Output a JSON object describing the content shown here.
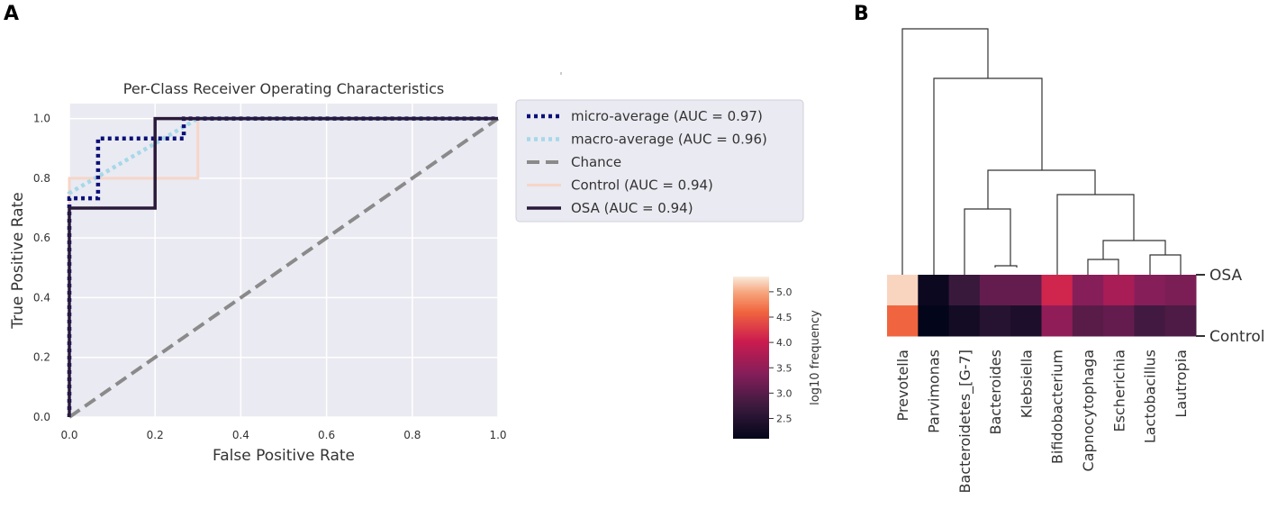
{
  "panels": {
    "a_label": "A",
    "b_label": "B"
  },
  "chart_data": [
    {
      "type": "line",
      "title": "Per-Class Receiver Operating Characteristics",
      "xlabel": "False Positive Rate",
      "ylabel": "True Positive Rate",
      "xlim": [
        0,
        1
      ],
      "ylim": [
        0,
        1.05
      ],
      "xticks": [
        "0.0",
        "0.2",
        "0.4",
        "0.6",
        "0.8",
        "1.0"
      ],
      "yticks": [
        "0.0",
        "0.2",
        "0.4",
        "0.6",
        "0.8",
        "1.0"
      ],
      "grid": true,
      "legend_position": "outside right",
      "series": [
        {
          "name": "micro-average (AUC = 0.97)",
          "style": "dotted",
          "color": "#0b0f78",
          "x": [
            0,
            0,
            0.067,
            0.067,
            0.267,
            0.267,
            1
          ],
          "y": [
            0,
            0.733,
            0.733,
            0.933,
            0.933,
            1.0,
            1.0
          ]
        },
        {
          "name": "macro-average (AUC = 0.96)",
          "style": "dotted",
          "color": "#a6d8e8",
          "x": [
            0,
            0,
            0.3,
            1
          ],
          "y": [
            0,
            0.75,
            1.0,
            1.0
          ]
        },
        {
          "name": "Chance",
          "style": "dashed",
          "color": "#8a8a8a",
          "x": [
            0,
            1
          ],
          "y": [
            0,
            1
          ]
        },
        {
          "name": "Control (AUC = 0.94)",
          "style": "solid",
          "color": "#f6d6c8",
          "x": [
            0,
            0,
            0.3,
            0.3,
            1
          ],
          "y": [
            0,
            0.8,
            0.8,
            1.0,
            1.0
          ]
        },
        {
          "name": "OSA (AUC = 0.94)",
          "style": "solid",
          "color": "#2a1a3a",
          "x": [
            0,
            0,
            0.2,
            0.2,
            1
          ],
          "y": [
            0,
            0.7,
            0.7,
            1.0,
            1.0
          ]
        }
      ]
    },
    {
      "type": "heatmap",
      "rows": [
        "OSA",
        "Control"
      ],
      "columns": [
        "Prevotella",
        "Parvimonas",
        "Bacteroidetes_[G-7]",
        "Bacteroides",
        "Klebsiella",
        "Bifidobacterium",
        "Capnocytophaga",
        "Escherichia",
        "Lactobacillus",
        "Lautropia"
      ],
      "values": [
        [
          5.2,
          2.2,
          2.7,
          3.1,
          3.1,
          4.1,
          3.4,
          3.7,
          3.4,
          3.3
        ],
        [
          4.6,
          2.1,
          2.3,
          2.5,
          2.4,
          3.5,
          3.0,
          3.1,
          2.8,
          2.9
        ]
      ],
      "colorbar": {
        "label": "log10 frequency",
        "range": [
          2.1,
          5.3
        ],
        "ticks": [
          "2.5",
          "3.0",
          "3.5",
          "4.0",
          "4.5",
          "5.0"
        ]
      },
      "dendrogram": "column clustering"
    }
  ]
}
